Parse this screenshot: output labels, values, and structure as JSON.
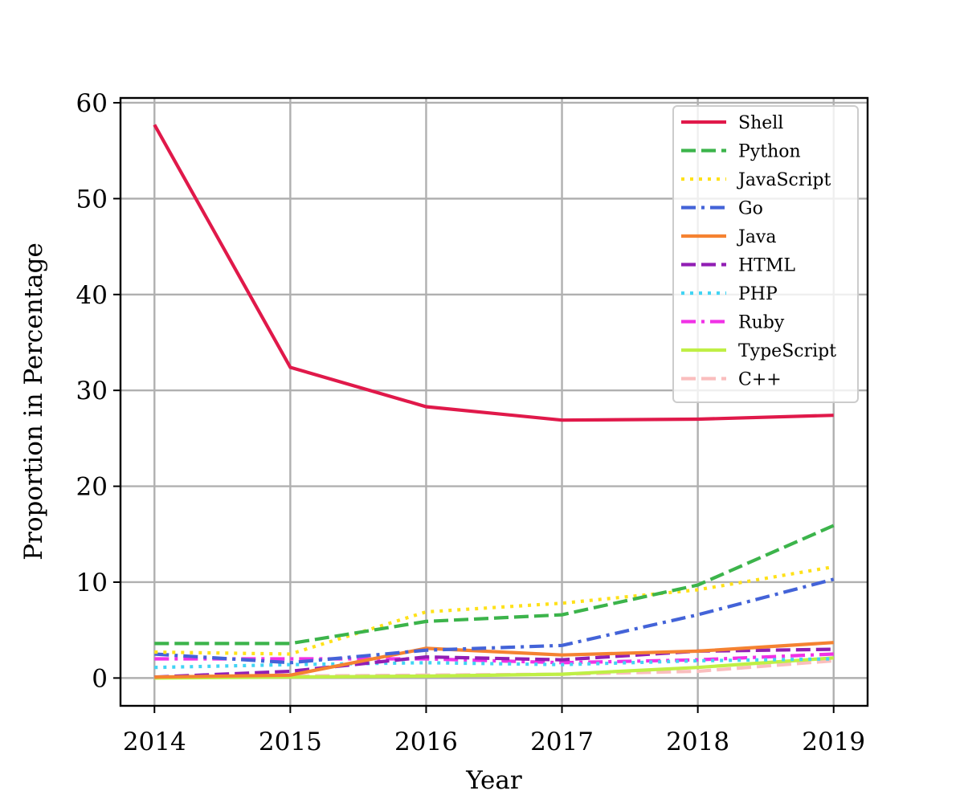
{
  "chart_data": {
    "type": "line",
    "xlabel": "Year",
    "ylabel": "Proportion in Percentage",
    "x": [
      2014,
      2015,
      2016,
      2017,
      2018,
      2019
    ],
    "xlim": [
      2013.75,
      2019.25
    ],
    "ylim": [
      -2.9,
      60.5
    ],
    "yticks": [
      0,
      10,
      20,
      30,
      40,
      50,
      60
    ],
    "grid": true,
    "legend_position": "top-right",
    "series": [
      {
        "name": "Shell",
        "values": [
          57.7,
          32.4,
          28.3,
          26.9,
          27.0,
          27.4
        ],
        "color": "#e0194a",
        "dash": "solid"
      },
      {
        "name": "Python",
        "values": [
          3.6,
          3.6,
          5.9,
          6.6,
          9.7,
          15.9
        ],
        "color": "#3cb44b",
        "dash": "dashed"
      },
      {
        "name": "JavaScript",
        "values": [
          2.7,
          2.5,
          6.9,
          7.8,
          9.2,
          11.6
        ],
        "color": "#ffe119",
        "dash": "dotted"
      },
      {
        "name": "Go",
        "values": [
          2.5,
          1.6,
          2.9,
          3.4,
          6.6,
          10.3
        ],
        "color": "#4363d8",
        "dash": "dashdot"
      },
      {
        "name": "Java",
        "values": [
          0.1,
          0.3,
          3.1,
          2.4,
          2.8,
          3.7
        ],
        "color": "#f58231",
        "dash": "solid"
      },
      {
        "name": "HTML",
        "values": [
          0.1,
          0.7,
          2.2,
          1.9,
          2.8,
          3.0
        ],
        "color": "#911eb4",
        "dash": "dashed"
      },
      {
        "name": "PHP",
        "values": [
          1.1,
          1.4,
          1.6,
          1.4,
          1.8,
          2.0
        ],
        "color": "#42d4f4",
        "dash": "dotted"
      },
      {
        "name": "Ruby",
        "values": [
          2.0,
          2.0,
          2.0,
          1.6,
          1.9,
          2.5
        ],
        "color": "#f032e6",
        "dash": "dashdot"
      },
      {
        "name": "TypeScript",
        "values": [
          0.0,
          0.1,
          0.2,
          0.4,
          1.1,
          2.1
        ],
        "color": "#bfef45",
        "dash": "solid"
      },
      {
        "name": "C++",
        "values": [
          0.1,
          0.2,
          0.3,
          0.4,
          0.7,
          1.8
        ],
        "color": "#fabebe",
        "dash": "dashed"
      }
    ]
  }
}
